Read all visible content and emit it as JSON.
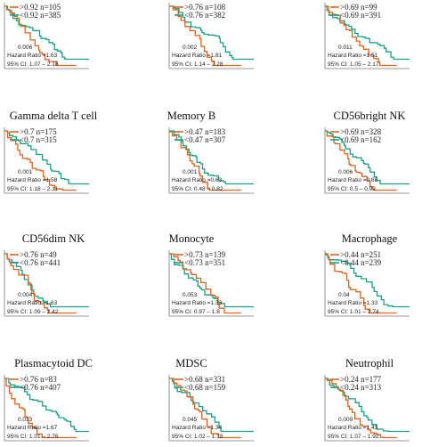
{
  "panels": [
    {
      "legend": [
        ">0.92 n=105",
        "<0.92 n=385"
      ],
      "p_value": "0.006",
      "hazard_ratio": "Hazard Ratio =1.63",
      "ci": "95% CI: 1.07 – 2.18"
    },
    {
      "legend": [
        ">0.76 n=108",
        "<0.76 n=382"
      ],
      "p_value": "0.002",
      "hazard_ratio": "Hazard Ratio =1.81",
      "ci": "95% CI: 1.14 – 2.28"
    },
    {
      "legend": [
        ">0.69 n=99",
        "<0.69 n=391"
      ],
      "p_value": "0.011",
      "hazard_ratio": "Hazard Ratio =1.51",
      "ci": "95% CI: 1.05 – 2.17"
    },
    {
      "title": "Gamma delta T cell",
      "legend": [
        ">0.7 n=175",
        "<0.7 n=315"
      ],
      "p_value": "0.001",
      "hazard_ratio": "Hazard Ratio =1.58",
      "ci": "95% CI: 1.18 – 2.11"
    },
    {
      "title": "Memory B",
      "legend": [
        ">0.47 n=183",
        "<0.47 n=307"
      ],
      "p_value": "0.001",
      "hazard_ratio": "Hazard Ratio =0.63",
      "ci": "95% CI: 0.48 – 0.82"
    },
    {
      "title": "CD56bright NK",
      "legend": [
        ">0.69 n=328",
        "<0.69 n=162"
      ],
      "p_value": "0.006",
      "hazard_ratio": "Hazard Ratio =0.68",
      "ci": "95% CI: 0.5 – 0.92"
    },
    {
      "title": "CD56dim NK",
      "legend": [
        ">0.76 n=49",
        "<0.76 n=441"
      ],
      "p_value": "0.004",
      "hazard_ratio": "Hazard Ratio =1.63",
      "ci": "95% CI: 1.09 – 2.42"
    },
    {
      "title": "Monocyte",
      "legend": [
        ">0.73 n=139",
        "<0.73 n=351"
      ],
      "p_value": "0.053",
      "hazard_ratio": "Hazard Ratio =1.33",
      "ci": "95% CI: 0.97 – 1.8"
    },
    {
      "title": "Macrophage",
      "legend": [
        ">0.44 n=251",
        "<0.44 n=239"
      ],
      "p_value": "0.04",
      "hazard_ratio": "Hazard Ratio =1.33",
      "ci": "95% CI: 1.01 – 1.74"
    },
    {
      "title": "Plasmacytoid DC",
      "legend": [
        ">0.76 n=83",
        "<0.76 n=407"
      ],
      "p_value": "0.013",
      "hazard_ratio": "Hazard Ratio =1.67",
      "ci": "95% CI: 1.01 – 2.76"
    },
    {
      "title": "MDSC",
      "legend": [
        ">0.68 n=331",
        "<0.68 n=159"
      ],
      "p_value": "0.045",
      "hazard_ratio": "Hazard Ratio =1.34",
      "ci": "95% CI: 1.02 – 1.78"
    },
    {
      "title": "Neutrophil",
      "legend": [
        ">0.24 n=177",
        "<0.24 n=313"
      ],
      "p_value": "0.009",
      "hazard_ratio": "Hazard Ratio =1.43",
      "ci": "95% CI: 1.07 – 1.92"
    }
  ]
}
